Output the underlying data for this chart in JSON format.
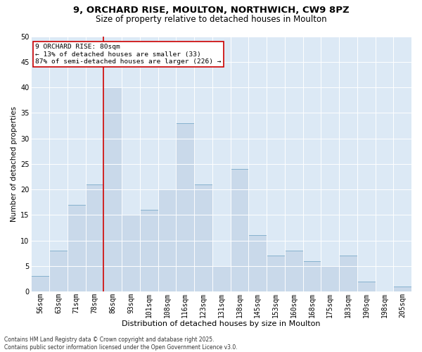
{
  "title1": "9, ORCHARD RISE, MOULTON, NORTHWICH, CW9 8PZ",
  "title2": "Size of property relative to detached houses in Moulton",
  "xlabel": "Distribution of detached houses by size in Moulton",
  "ylabel": "Number of detached properties",
  "footnote": "Contains HM Land Registry data © Crown copyright and database right 2025.\nContains public sector information licensed under the Open Government Licence v3.0.",
  "bin_labels": [
    "56sqm",
    "63sqm",
    "71sqm",
    "78sqm",
    "86sqm",
    "93sqm",
    "101sqm",
    "108sqm",
    "116sqm",
    "123sqm",
    "131sqm",
    "138sqm",
    "145sqm",
    "153sqm",
    "160sqm",
    "168sqm",
    "175sqm",
    "183sqm",
    "190sqm",
    "198sqm",
    "205sqm"
  ],
  "bar_values": [
    3,
    8,
    17,
    21,
    40,
    15,
    16,
    20,
    33,
    21,
    5,
    24,
    11,
    7,
    8,
    6,
    5,
    7,
    2,
    0,
    1
  ],
  "bar_color": "#c9d9ea",
  "bar_edge_color": "#7aaac8",
  "vline_color": "#cc0000",
  "annotation_text": "9 ORCHARD RISE: 80sqm\n← 13% of detached houses are smaller (33)\n87% of semi-detached houses are larger (226) →",
  "annotation_box_color": "#ffffff",
  "annotation_box_edge": "#cc0000",
  "ylim": [
    0,
    50
  ],
  "yticks": [
    0,
    5,
    10,
    15,
    20,
    25,
    30,
    35,
    40,
    45,
    50
  ],
  "background_color": "#ffffff",
  "plot_bg_color": "#dce9f5",
  "grid_color": "#ffffff",
  "title1_fontsize": 9.5,
  "title2_fontsize": 8.5,
  "tick_fontsize": 7,
  "xlabel_fontsize": 8,
  "ylabel_fontsize": 7.5,
  "footnote_fontsize": 5.5
}
